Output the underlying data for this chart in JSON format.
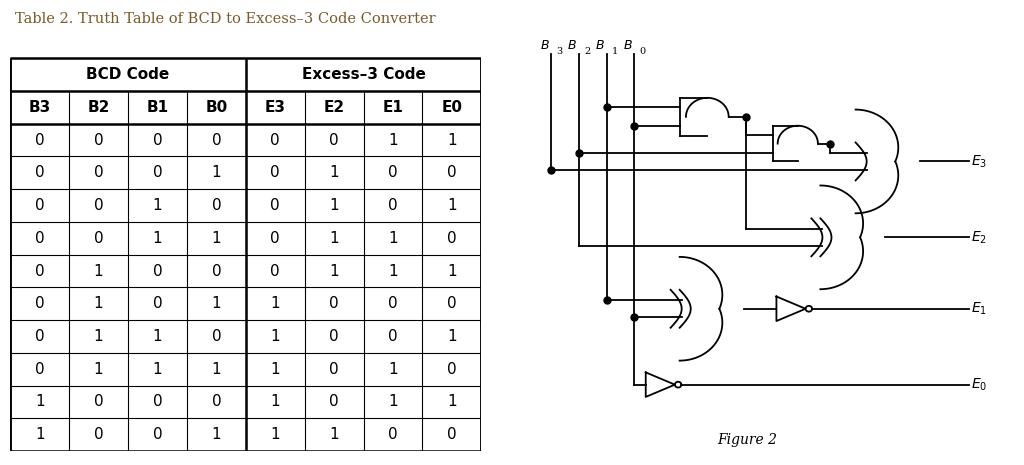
{
  "title": "Table 2. Truth Table of BCD to Excess–3 Code Converter",
  "title_color": "#7B5B2A",
  "headers_row1_left": "BCD Code",
  "headers_row1_right": "Excess–3 Code",
  "headers_row2": [
    "B3",
    "B2",
    "B1",
    "B0",
    "E3",
    "E2",
    "E1",
    "E0"
  ],
  "table_data": [
    [
      0,
      0,
      0,
      0,
      0,
      0,
      1,
      1
    ],
    [
      0,
      0,
      0,
      1,
      0,
      1,
      0,
      0
    ],
    [
      0,
      0,
      1,
      0,
      0,
      1,
      0,
      1
    ],
    [
      0,
      0,
      1,
      1,
      0,
      1,
      1,
      0
    ],
    [
      0,
      1,
      0,
      0,
      0,
      1,
      1,
      1
    ],
    [
      0,
      1,
      0,
      1,
      1,
      0,
      0,
      0
    ],
    [
      0,
      1,
      1,
      0,
      1,
      0,
      0,
      1
    ],
    [
      0,
      1,
      1,
      1,
      1,
      0,
      1,
      0
    ],
    [
      1,
      0,
      0,
      0,
      1,
      0,
      1,
      1
    ],
    [
      1,
      0,
      0,
      1,
      1,
      1,
      0,
      0
    ]
  ],
  "figure_label": "Figure 2",
  "bg": "#ffffff"
}
